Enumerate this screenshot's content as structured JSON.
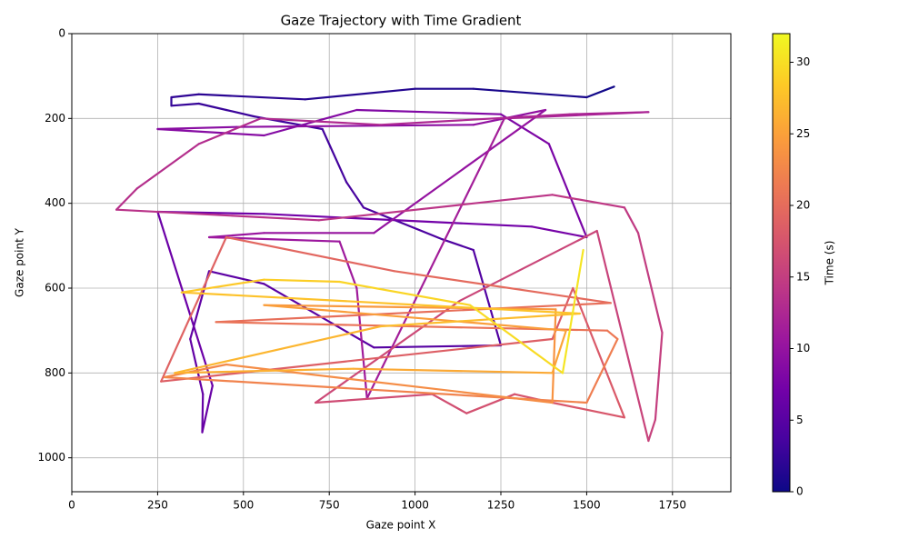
{
  "chart_data": {
    "type": "gaze-trajectory",
    "title": "Gaze Trajectory with Time Gradient",
    "xlabel": "Gaze point X",
    "ylabel": "Gaze point Y",
    "colorbar_label": "Time (s)",
    "xlim": [
      0,
      1920
    ],
    "ylim": [
      1080,
      0
    ],
    "xticks": [
      0,
      250,
      500,
      750,
      1000,
      1250,
      1500,
      1750
    ],
    "yticks": [
      0,
      200,
      400,
      600,
      800,
      1000
    ],
    "clim": [
      0,
      32
    ],
    "cticks": [
      0,
      5,
      10,
      15,
      20,
      25,
      30
    ],
    "grid": true,
    "colormap": [
      "#0d0887",
      "#46039f",
      "#7201a8",
      "#9c179e",
      "#bd3786",
      "#d8576b",
      "#ed7953",
      "#fb9f3a",
      "#fdca26",
      "#f0f921"
    ],
    "x": [
      1580,
      1500,
      1170,
      1000,
      680,
      370,
      290,
      290,
      370,
      450,
      530,
      730,
      800,
      850,
      1080,
      1170,
      1250,
      880,
      560,
      400,
      345,
      382,
      380,
      410,
      250,
      560,
      1340,
      1500,
      1390,
      1250,
      830,
      560,
      250,
      480,
      1170,
      1380,
      880,
      560,
      400,
      780,
      830,
      860,
      1260,
      1680,
      1450,
      900,
      550,
      370,
      190,
      130,
      720,
      1400,
      1610,
      1650,
      1720,
      1700,
      1680,
      1530,
      1130,
      710,
      1050,
      1150,
      1290,
      1400,
      1610,
      1460,
      1400,
      260,
      450,
      940,
      1570,
      420,
      1560,
      1590,
      1500,
      270,
      450,
      1400,
      1410,
      560,
      1440,
      1400,
      820,
      300,
      900,
      1480,
      320,
      560,
      780,
      1160,
      1430,
      1490
    ],
    "y": [
      125,
      150,
      130,
      130,
      155,
      143,
      150,
      170,
      165,
      180,
      195,
      225,
      350,
      410,
      485,
      510,
      735,
      740,
      590,
      560,
      720,
      850,
      940,
      830,
      420,
      425,
      455,
      480,
      260,
      190,
      180,
      240,
      225,
      220,
      215,
      180,
      470,
      470,
      480,
      490,
      600,
      860,
      200,
      185,
      190,
      215,
      200,
      260,
      365,
      415,
      440,
      380,
      410,
      470,
      705,
      910,
      960,
      465,
      630,
      870,
      850,
      895,
      850,
      870,
      905,
      600,
      720,
      820,
      480,
      560,
      635,
      680,
      700,
      720,
      870,
      810,
      780,
      870,
      650,
      640,
      700,
      800,
      790,
      800,
      690,
      660,
      610,
      580,
      585,
      640,
      800,
      510
    ],
    "t": [
      0,
      0.5,
      1,
      1.3,
      1.6,
      2,
      2.2,
      2.4,
      2.6,
      2.8,
      3,
      3.3,
      3.6,
      3.9,
      4.2,
      4.4,
      4.7,
      5,
      5.3,
      5.5,
      5.8,
      6,
      6.2,
      6.5,
      6.8,
      7,
      7.3,
      7.6,
      7.9,
      8.2,
      8.5,
      8.8,
      9,
      9.2,
      9.5,
      9.8,
      10.1,
      10.3,
      10.5,
      10.8,
      11,
      11.3,
      11.6,
      12,
      12.3,
      12.6,
      12.9,
      13.2,
      13.4,
      13.6,
      13.9,
      14.2,
      14.5,
      14.7,
      15,
      15.3,
      15.5,
      15.8,
      16.1,
      16.4,
      16.7,
      17,
      17.3,
      17.6,
      17.9,
      18.2,
      18.5,
      18.8,
      19.2,
      19.6,
      20,
      20.5,
      21,
      21.5,
      22,
      22.5,
      23,
      23.5,
      24,
      24.5,
      25,
      25.5,
      26,
      26.5,
      27,
      27.5,
      28,
      28.5,
      29,
      29.5,
      30,
      31
    ]
  }
}
